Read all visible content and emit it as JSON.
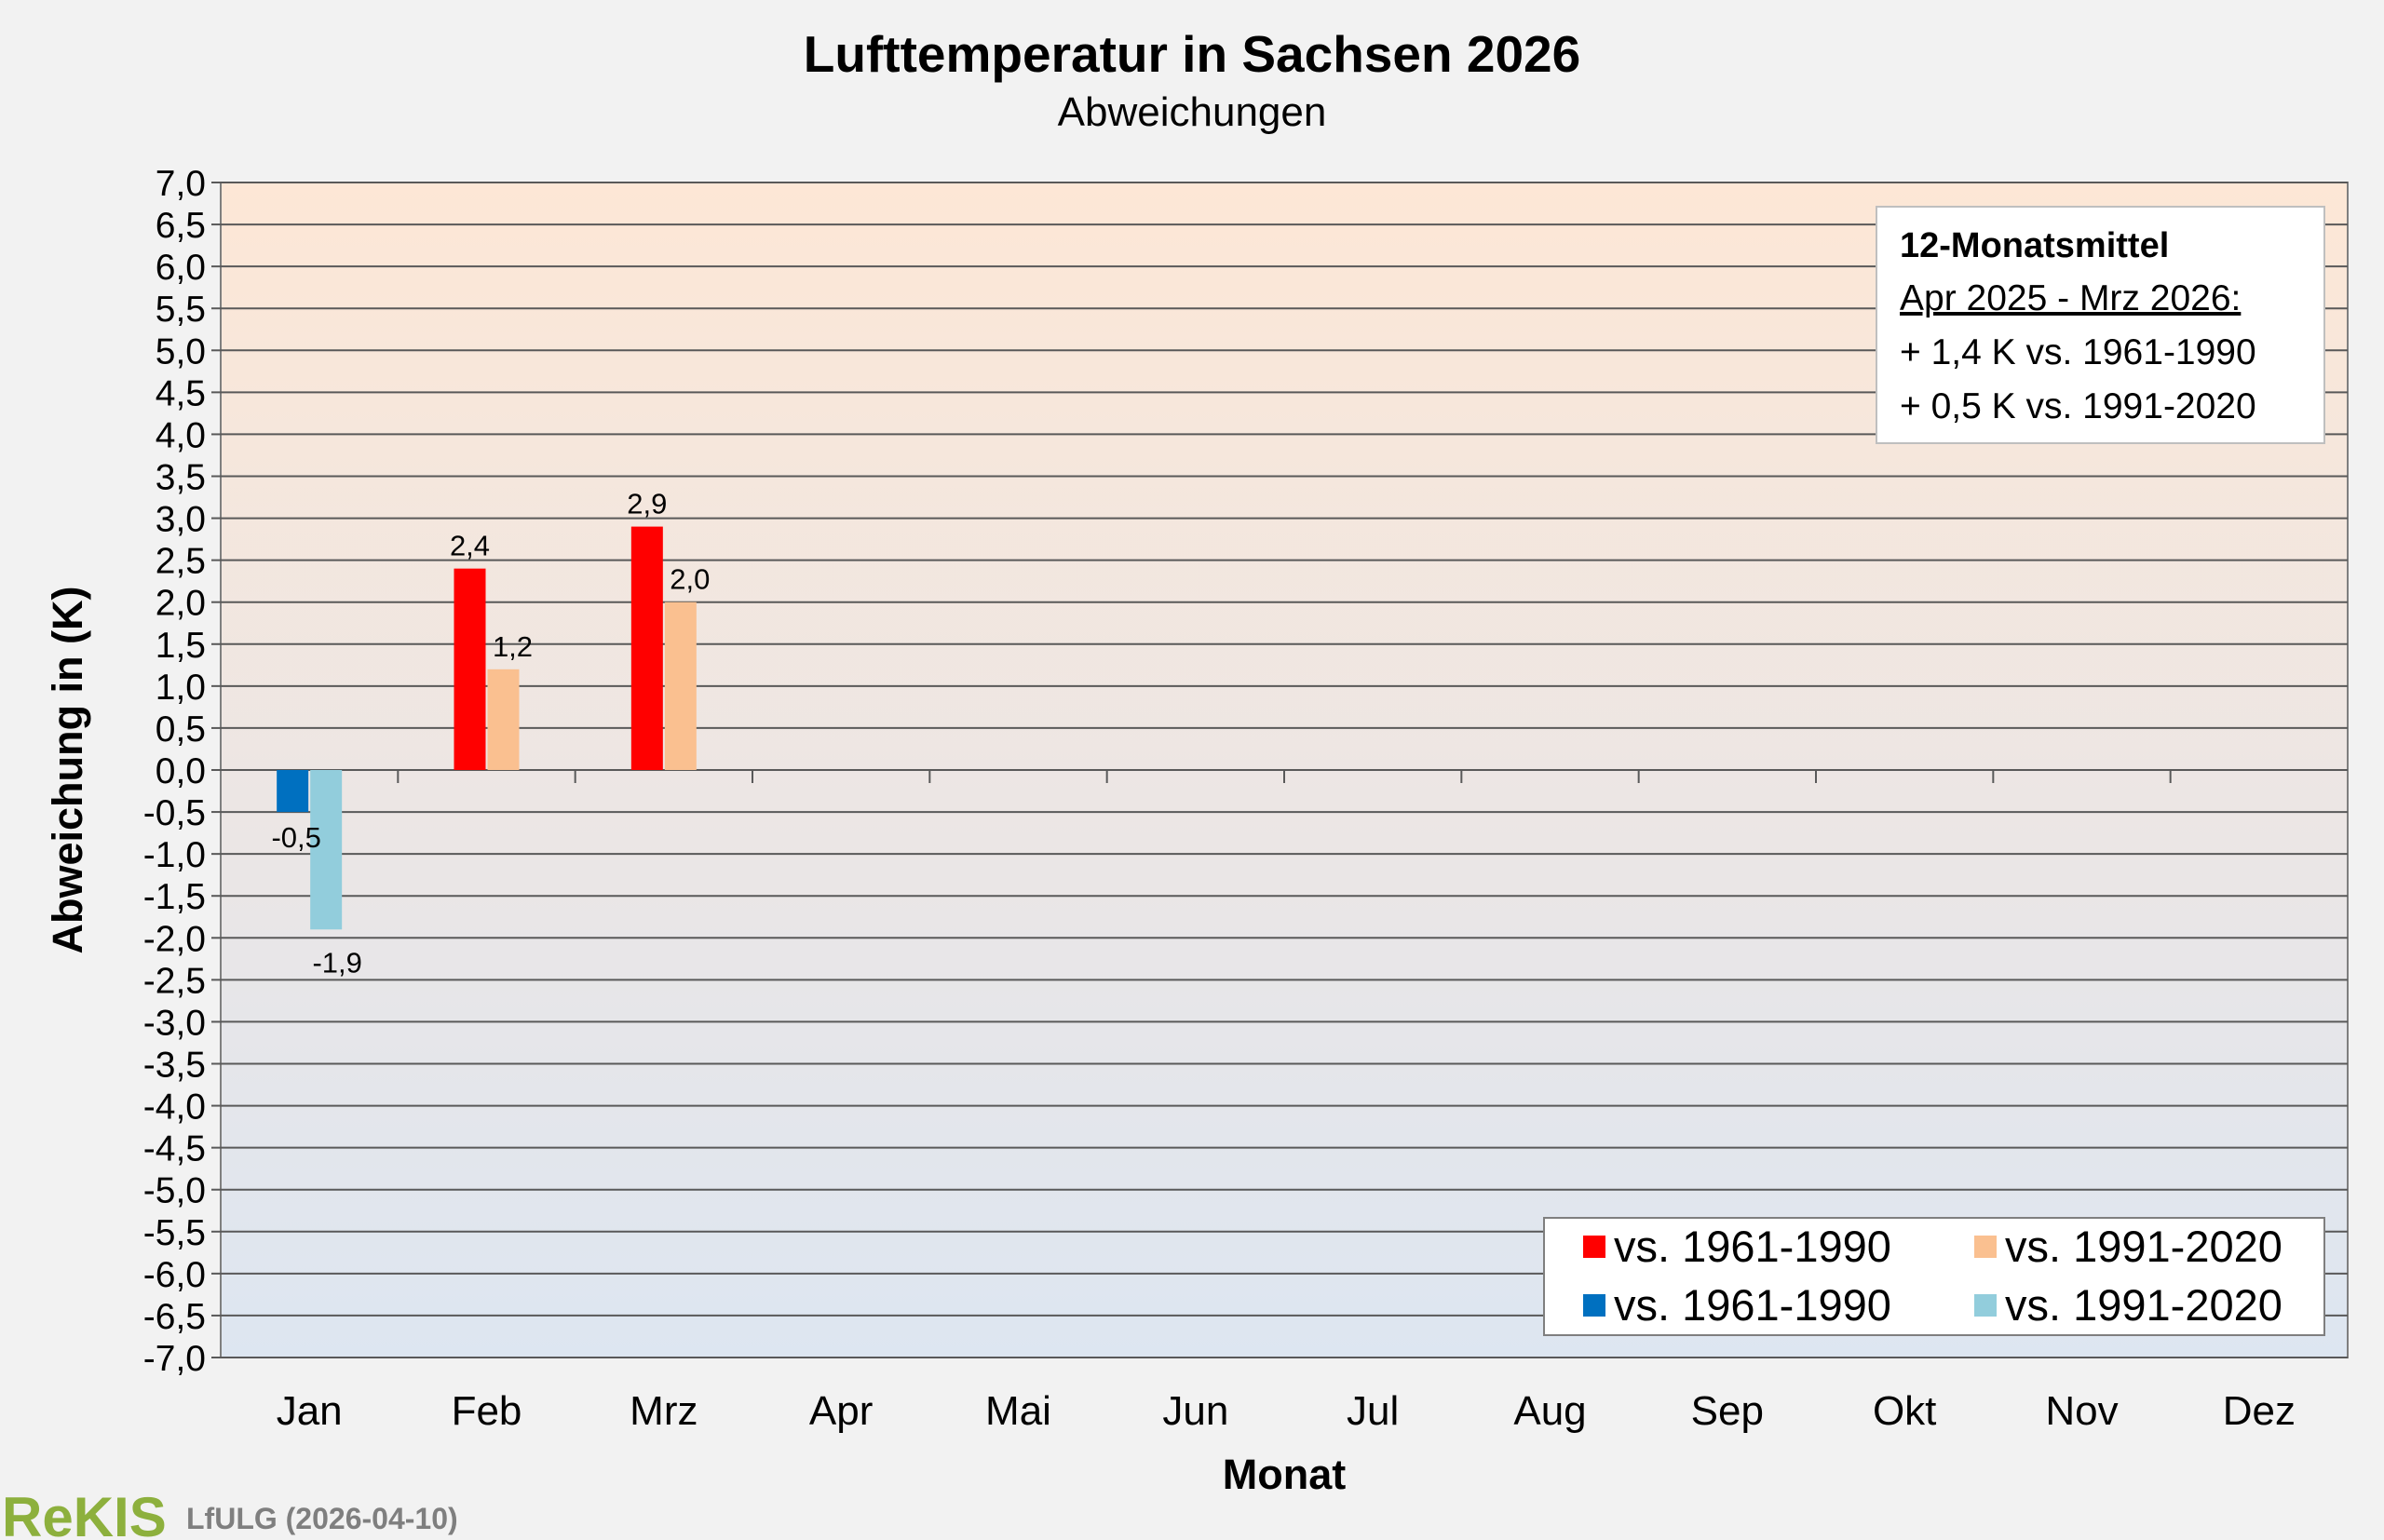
{
  "chart_data": {
    "type": "bar",
    "title": "Lufttemperatur in Sachsen 2026",
    "subtitle": "Abweichungen",
    "xlabel": "Monat",
    "ylabel": "Abweichung in (K)",
    "ylim": [
      -7.0,
      7.0
    ],
    "ytick_step": 0.5,
    "grid": true,
    "categories": [
      "Jan",
      "Feb",
      "Mrz",
      "Apr",
      "Mai",
      "Jun",
      "Jul",
      "Aug",
      "Sep",
      "Okt",
      "Nov",
      "Dez"
    ],
    "series": [
      {
        "name": "vs. 1961-1990",
        "values": [
          -0.5,
          2.4,
          2.9,
          null,
          null,
          null,
          null,
          null,
          null,
          null,
          null,
          null
        ],
        "color_positive": "#ff0000",
        "color_negative": "#0070c0"
      },
      {
        "name": "vs. 1991-2020",
        "values": [
          -1.9,
          1.2,
          2.0,
          null,
          null,
          null,
          null,
          null,
          null,
          null,
          null,
          null
        ],
        "color_positive": "#fac090",
        "color_negative": "#92cddc"
      }
    ],
    "legend": {
      "placement": "bottom-right",
      "entries": [
        {
          "label": "vs. 1961-1990",
          "color": "#ff0000"
        },
        {
          "label": "vs. 1991-2020",
          "color": "#fac090"
        },
        {
          "label": "vs. 1961-1990",
          "color": "#0070c0"
        },
        {
          "label": "vs. 1991-2020",
          "color": "#92cddc"
        }
      ]
    },
    "info_box": {
      "placement": "top-right",
      "title": "12-Monatsmittel",
      "period": "Apr 2025 - Mrz 2026:",
      "lines": [
        "+ 1,4 K vs. 1961-1990",
        "+ 0,5 K vs. 1991-2020"
      ]
    }
  },
  "footer": {
    "logo": "ReKIS",
    "source": "LfULG (2026-04-10)"
  },
  "colors": {
    "plot_top": "#fde7d6",
    "plot_bottom": "#dde6f1",
    "gridline": "#595959",
    "background": "#f2f2f2"
  }
}
